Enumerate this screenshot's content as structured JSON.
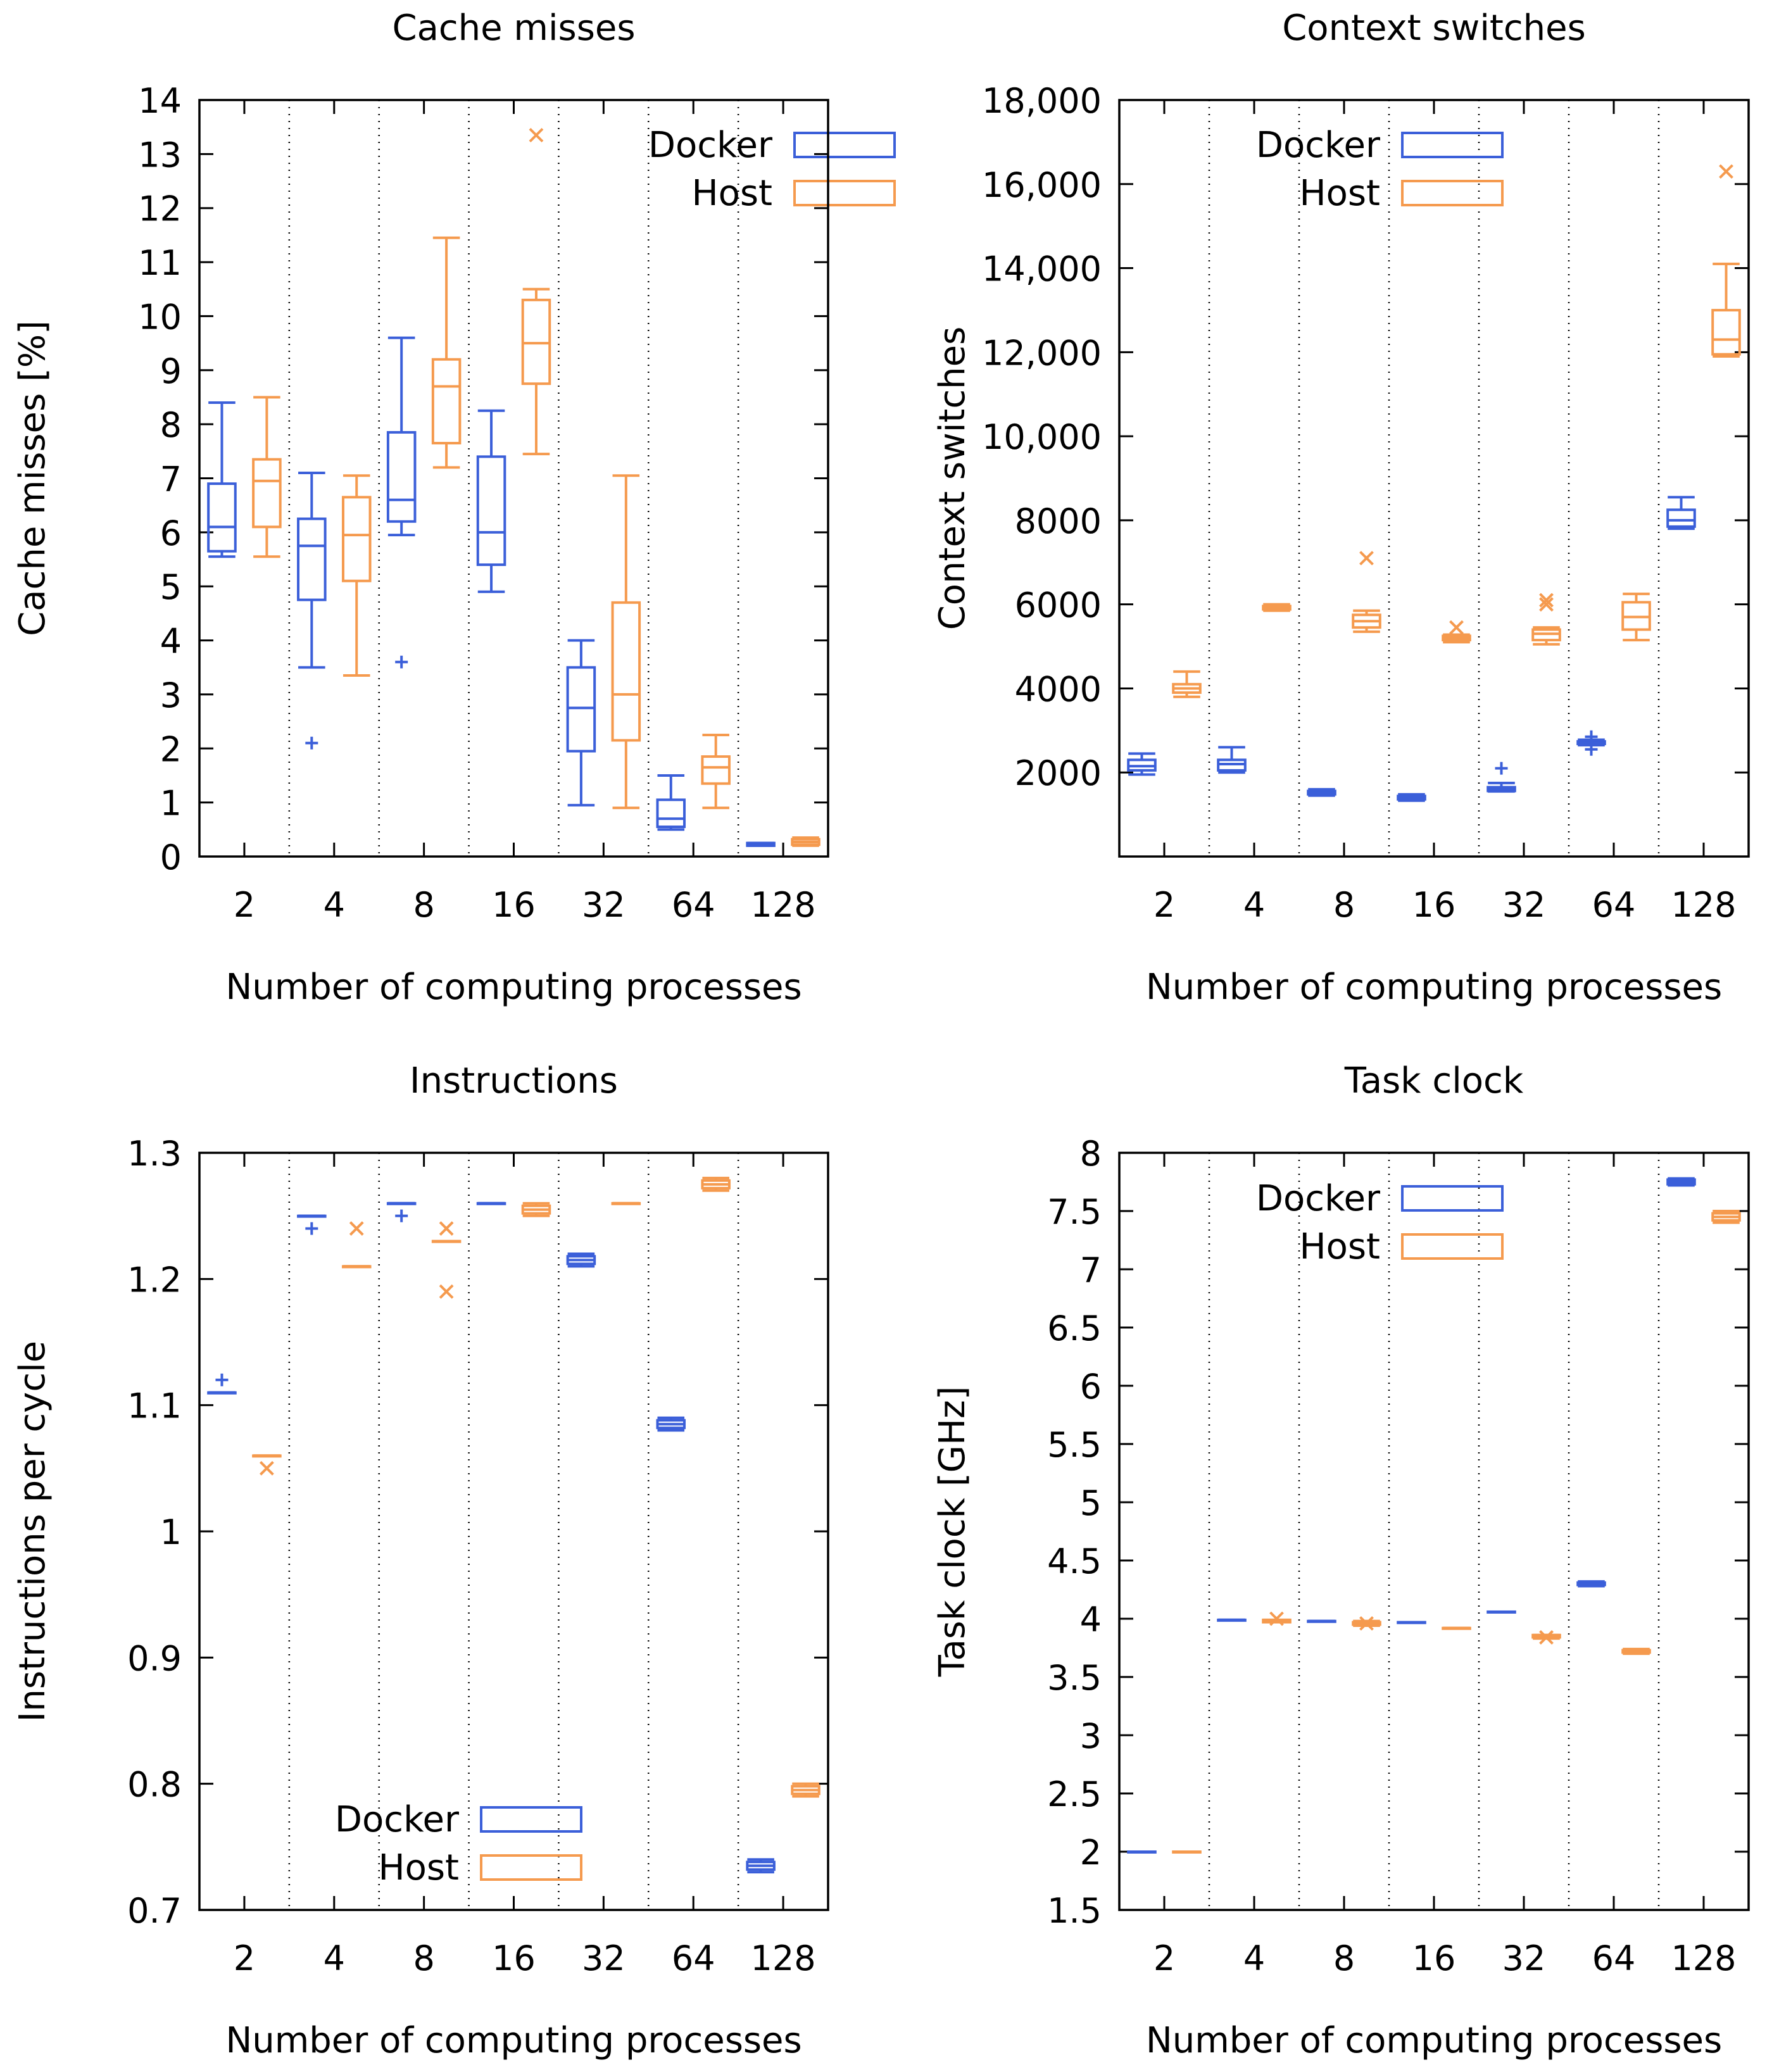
{
  "colors": {
    "docker": "#3b5fd9",
    "host": "#f59a4e",
    "axis": "#000000"
  },
  "chart_data": [
    {
      "type": "box",
      "title": "Cache misses",
      "xlabel": "Number of computing processes",
      "ylabel": "Cache misses [%]",
      "ylim": [
        0,
        14
      ],
      "yticks": [
        {
          "v": 0,
          "label": "0"
        },
        {
          "v": 1,
          "label": "1"
        },
        {
          "v": 2,
          "label": "2"
        },
        {
          "v": 3,
          "label": "3"
        },
        {
          "v": 4,
          "label": "4"
        },
        {
          "v": 5,
          "label": "5"
        },
        {
          "v": 6,
          "label": "6"
        },
        {
          "v": 7,
          "label": "7"
        },
        {
          "v": 8,
          "label": "8"
        },
        {
          "v": 9,
          "label": "9"
        },
        {
          "v": 10,
          "label": "10"
        },
        {
          "v": 11,
          "label": "11"
        },
        {
          "v": 12,
          "label": "12"
        },
        {
          "v": 13,
          "label": "13"
        },
        {
          "v": 14,
          "label": "14"
        }
      ],
      "categories": [
        "2",
        "4",
        "8",
        "16",
        "32",
        "64",
        "128"
      ],
      "legend": {
        "position": "top-right",
        "entries": [
          "Docker",
          "Host"
        ]
      },
      "series": [
        {
          "name": "Docker",
          "boxes": [
            {
              "min": 5.55,
              "q1": 5.65,
              "median": 6.1,
              "q3": 6.9,
              "max": 8.4,
              "outliers": []
            },
            {
              "min": 3.5,
              "q1": 4.75,
              "median": 5.75,
              "q3": 6.25,
              "max": 7.1,
              "outliers": [
                2.1
              ]
            },
            {
              "min": 5.95,
              "q1": 6.2,
              "median": 6.6,
              "q3": 7.85,
              "max": 9.6,
              "outliers": [
                3.6
              ]
            },
            {
              "min": 4.9,
              "q1": 5.4,
              "median": 6.0,
              "q3": 7.4,
              "max": 8.25,
              "outliers": []
            },
            {
              "min": 0.95,
              "q1": 1.95,
              "median": 2.75,
              "q3": 3.5,
              "max": 4.0,
              "outliers": []
            },
            {
              "min": 0.5,
              "q1": 0.55,
              "median": 0.7,
              "q3": 1.05,
              "max": 1.5,
              "outliers": []
            },
            {
              "min": 0.2,
              "q1": 0.2,
              "median": 0.22,
              "q3": 0.25,
              "max": 0.25,
              "outliers": []
            }
          ]
        },
        {
          "name": "Host",
          "boxes": [
            {
              "min": 5.55,
              "q1": 6.1,
              "median": 6.95,
              "q3": 7.35,
              "max": 8.5,
              "outliers": []
            },
            {
              "min": 3.35,
              "q1": 5.1,
              "median": 5.95,
              "q3": 6.65,
              "max": 7.05,
              "outliers": []
            },
            {
              "min": 7.2,
              "q1": 7.65,
              "median": 8.7,
              "q3": 9.2,
              "max": 11.45,
              "outliers": []
            },
            {
              "min": 7.45,
              "q1": 8.75,
              "median": 9.5,
              "q3": 10.3,
              "max": 10.5,
              "outliers": [
                13.35
              ]
            },
            {
              "min": 0.9,
              "q1": 2.15,
              "median": 3.0,
              "q3": 4.7,
              "max": 7.05,
              "outliers": []
            },
            {
              "min": 0.9,
              "q1": 1.35,
              "median": 1.65,
              "q3": 1.85,
              "max": 2.25,
              "outliers": []
            },
            {
              "min": 0.2,
              "q1": 0.22,
              "median": 0.27,
              "q3": 0.32,
              "max": 0.35,
              "outliers": []
            }
          ]
        }
      ]
    },
    {
      "type": "box",
      "title": "Context switches",
      "xlabel": "Number of computing processes",
      "ylabel": "Context switches",
      "ylim": [
        0,
        18000
      ],
      "yticks": [
        {
          "v": 2000,
          "label": "2000"
        },
        {
          "v": 4000,
          "label": "4000"
        },
        {
          "v": 6000,
          "label": "6000"
        },
        {
          "v": 8000,
          "label": "8000"
        },
        {
          "v": 10000,
          "label": "10,000"
        },
        {
          "v": 12000,
          "label": "12,000"
        },
        {
          "v": 14000,
          "label": "14,000"
        },
        {
          "v": 16000,
          "label": "16,000"
        },
        {
          "v": 18000,
          "label": "18,000"
        }
      ],
      "categories": [
        "2",
        "4",
        "8",
        "16",
        "32",
        "64",
        "128"
      ],
      "legend": {
        "position": "top-left",
        "entries": [
          "Docker",
          "Host"
        ]
      },
      "series": [
        {
          "name": "Docker",
          "boxes": [
            {
              "min": 1950,
              "q1": 2050,
              "median": 2150,
              "q3": 2300,
              "max": 2450,
              "outliers": []
            },
            {
              "min": 2000,
              "q1": 2050,
              "median": 2200,
              "q3": 2300,
              "max": 2600,
              "outliers": []
            },
            {
              "min": 1450,
              "q1": 1480,
              "median": 1520,
              "q3": 1560,
              "max": 1600,
              "outliers": []
            },
            {
              "min": 1330,
              "q1": 1360,
              "median": 1400,
              "q3": 1440,
              "max": 1480,
              "outliers": []
            },
            {
              "min": 1550,
              "q1": 1560,
              "median": 1600,
              "q3": 1650,
              "max": 1750,
              "outliers": [
                2100
              ]
            },
            {
              "min": 2650,
              "q1": 2680,
              "median": 2700,
              "q3": 2740,
              "max": 2780,
              "outliers": [
                2550,
                2850
              ]
            },
            {
              "min": 7800,
              "q1": 7850,
              "median": 8000,
              "q3": 8250,
              "max": 8550,
              "outliers": []
            }
          ]
        },
        {
          "name": "Host",
          "boxes": [
            {
              "min": 3800,
              "q1": 3900,
              "median": 4000,
              "q3": 4100,
              "max": 4400,
              "outliers": []
            },
            {
              "min": 5850,
              "q1": 5880,
              "median": 5920,
              "q3": 5960,
              "max": 6000,
              "outliers": []
            },
            {
              "min": 5350,
              "q1": 5450,
              "median": 5600,
              "q3": 5750,
              "max": 5850,
              "outliers": [
                7100
              ]
            },
            {
              "min": 5100,
              "q1": 5150,
              "median": 5200,
              "q3": 5250,
              "max": 5280,
              "outliers": [
                5450
              ]
            },
            {
              "min": 5050,
              "q1": 5150,
              "median": 5300,
              "q3": 5400,
              "max": 5450,
              "outliers": [
                6000,
                6100
              ]
            },
            {
              "min": 5150,
              "q1": 5400,
              "median": 5700,
              "q3": 6050,
              "max": 6250,
              "outliers": []
            },
            {
              "min": 11900,
              "q1": 11950,
              "median": 12300,
              "q3": 13000,
              "max": 14100,
              "outliers": [
                16300
              ]
            }
          ]
        }
      ]
    },
    {
      "type": "box",
      "title": "Instructions",
      "xlabel": "Number of computing processes",
      "ylabel": "Instructions per cycle",
      "ylim": [
        0.7,
        1.3
      ],
      "yticks": [
        {
          "v": 0.7,
          "label": "0.7"
        },
        {
          "v": 0.8,
          "label": "0.8"
        },
        {
          "v": 0.9,
          "label": "0.9"
        },
        {
          "v": 1.0,
          "label": "1"
        },
        {
          "v": 1.1,
          "label": "1.1"
        },
        {
          "v": 1.2,
          "label": "1.2"
        },
        {
          "v": 1.3,
          "label": "1.3"
        }
      ],
      "categories": [
        "2",
        "4",
        "8",
        "16",
        "32",
        "64",
        "128"
      ],
      "legend": {
        "position": "bottom-left",
        "entries": [
          "Docker",
          "Host"
        ]
      },
      "series": [
        {
          "name": "Docker",
          "boxes": [
            {
              "min": 1.11,
              "q1": 1.11,
              "median": 1.11,
              "q3": 1.11,
              "max": 1.11,
              "outliers": [
                1.12
              ]
            },
            {
              "min": 1.25,
              "q1": 1.25,
              "median": 1.25,
              "q3": 1.25,
              "max": 1.25,
              "outliers": [
                1.24
              ]
            },
            {
              "min": 1.26,
              "q1": 1.26,
              "median": 1.26,
              "q3": 1.26,
              "max": 1.26,
              "outliers": [
                1.25
              ]
            },
            {
              "min": 1.26,
              "q1": 1.26,
              "median": 1.26,
              "q3": 1.26,
              "max": 1.26,
              "outliers": []
            },
            {
              "min": 1.21,
              "q1": 1.212,
              "median": 1.215,
              "q3": 1.218,
              "max": 1.22,
              "outliers": []
            },
            {
              "min": 1.08,
              "q1": 1.082,
              "median": 1.085,
              "q3": 1.088,
              "max": 1.09,
              "outliers": []
            },
            {
              "min": 0.73,
              "q1": 0.732,
              "median": 0.735,
              "q3": 0.738,
              "max": 0.74,
              "outliers": []
            }
          ]
        },
        {
          "name": "Host",
          "boxes": [
            {
              "min": 1.06,
              "q1": 1.06,
              "median": 1.06,
              "q3": 1.06,
              "max": 1.06,
              "outliers": [
                1.05
              ]
            },
            {
              "min": 1.21,
              "q1": 1.21,
              "median": 1.21,
              "q3": 1.21,
              "max": 1.21,
              "outliers": [
                1.24
              ]
            },
            {
              "min": 1.23,
              "q1": 1.23,
              "median": 1.23,
              "q3": 1.23,
              "max": 1.23,
              "outliers": [
                1.19,
                1.24
              ]
            },
            {
              "min": 1.25,
              "q1": 1.252,
              "median": 1.255,
              "q3": 1.258,
              "max": 1.26,
              "outliers": []
            },
            {
              "min": 1.26,
              "q1": 1.26,
              "median": 1.26,
              "q3": 1.26,
              "max": 1.26,
              "outliers": []
            },
            {
              "min": 1.27,
              "q1": 1.272,
              "median": 1.275,
              "q3": 1.278,
              "max": 1.28,
              "outliers": []
            },
            {
              "min": 0.79,
              "q1": 0.792,
              "median": 0.795,
              "q3": 0.798,
              "max": 0.8,
              "outliers": []
            }
          ]
        }
      ]
    },
    {
      "type": "box",
      "title": "Task clock",
      "xlabel": "Number of computing processes",
      "ylabel": "Task clock [GHz]",
      "ylim": [
        1.5,
        8
      ],
      "yticks": [
        {
          "v": 1.5,
          "label": "1.5"
        },
        {
          "v": 2,
          "label": "2"
        },
        {
          "v": 2.5,
          "label": "2.5"
        },
        {
          "v": 3,
          "label": "3"
        },
        {
          "v": 3.5,
          "label": "3.5"
        },
        {
          "v": 4,
          "label": "4"
        },
        {
          "v": 4.5,
          "label": "4.5"
        },
        {
          "v": 5,
          "label": "5"
        },
        {
          "v": 5.5,
          "label": "5.5"
        },
        {
          "v": 6,
          "label": "6"
        },
        {
          "v": 6.5,
          "label": "6.5"
        },
        {
          "v": 7,
          "label": "7"
        },
        {
          "v": 7.5,
          "label": "7.5"
        },
        {
          "v": 8,
          "label": "8"
        }
      ],
      "categories": [
        "2",
        "4",
        "8",
        "16",
        "32",
        "64",
        "128"
      ],
      "legend": {
        "position": "top-left",
        "entries": [
          "Docker",
          "Host"
        ]
      },
      "series": [
        {
          "name": "Docker",
          "boxes": [
            {
              "min": 2.0,
              "q1": 2.0,
              "median": 2.0,
              "q3": 2.0,
              "max": 2.0,
              "outliers": []
            },
            {
              "min": 3.99,
              "q1": 3.99,
              "median": 3.99,
              "q3": 3.99,
              "max": 3.99,
              "outliers": []
            },
            {
              "min": 3.98,
              "q1": 3.98,
              "median": 3.98,
              "q3": 3.98,
              "max": 3.98,
              "outliers": []
            },
            {
              "min": 3.97,
              "q1": 3.97,
              "median": 3.97,
              "q3": 3.97,
              "max": 3.97,
              "outliers": []
            },
            {
              "min": 4.06,
              "q1": 4.06,
              "median": 4.06,
              "q3": 4.06,
              "max": 4.06,
              "outliers": []
            },
            {
              "min": 4.28,
              "q1": 4.29,
              "median": 4.3,
              "q3": 4.31,
              "max": 4.32,
              "outliers": []
            },
            {
              "min": 7.72,
              "q1": 7.73,
              "median": 7.75,
              "q3": 7.77,
              "max": 7.78,
              "outliers": []
            }
          ]
        },
        {
          "name": "Host",
          "boxes": [
            {
              "min": 2.0,
              "q1": 2.0,
              "median": 2.0,
              "q3": 2.0,
              "max": 2.0,
              "outliers": []
            },
            {
              "min": 3.97,
              "q1": 3.97,
              "median": 3.98,
              "q3": 3.99,
              "max": 3.99,
              "outliers": [
                4.0
              ]
            },
            {
              "min": 3.94,
              "q1": 3.95,
              "median": 3.96,
              "q3": 3.97,
              "max": 3.98,
              "outliers": [
                3.96
              ]
            },
            {
              "min": 3.92,
              "q1": 3.92,
              "median": 3.92,
              "q3": 3.92,
              "max": 3.92,
              "outliers": []
            },
            {
              "min": 3.83,
              "q1": 3.84,
              "median": 3.85,
              "q3": 3.86,
              "max": 3.86,
              "outliers": [
                3.84
              ]
            },
            {
              "min": 3.7,
              "q1": 3.71,
              "median": 3.72,
              "q3": 3.73,
              "max": 3.74,
              "outliers": []
            },
            {
              "min": 7.4,
              "q1": 7.42,
              "median": 7.45,
              "q3": 7.48,
              "max": 7.5,
              "outliers": []
            }
          ]
        }
      ]
    }
  ]
}
